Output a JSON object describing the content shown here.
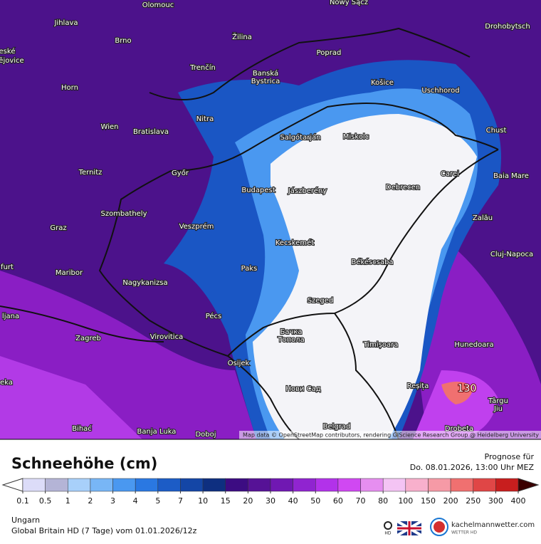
{
  "map": {
    "cities": [
      "Olomouc",
      "Nowy Sącz",
      "Jihlava",
      "Brno",
      "Žilina",
      "Poprad",
      "Drohobytsch",
      "eské",
      "ějovice",
      "Trenčín",
      "Banská",
      "Bystrica",
      "Košice",
      "Uschhorod",
      "Horn",
      "Nitra",
      "Wien",
      "Bratislava",
      "Salgótarján",
      "Miskolc",
      "Chust",
      "Ternitz",
      "Győr",
      "Carei",
      "Baia Mare",
      "Budapest",
      "Jászberény",
      "Debrecen",
      "Szombathely",
      "Veszprém",
      "Zalău",
      "Graz",
      "Kecskemét",
      "Cluj-Napoca",
      "furt",
      "Maribor",
      "Paks",
      "Békéscsaba",
      "Nagykanizsa",
      "ljana",
      "Szeged",
      "Pécs",
      "Zagreb",
      "Virovitica",
      "Бачка",
      "Топола",
      "Timișoara",
      "Hunedoara",
      "Osijek",
      "Нови Сад",
      "Reșița",
      "eka",
      "Târgu",
      "Jiu",
      "Bihać",
      "Banja Luka",
      "Doboj",
      "Belgrad",
      "Drobeta"
    ],
    "annotations": [
      "130"
    ],
    "attribution": "Map data © OpenStreetMap contributors, rendering GIScience Research Group @ Heidelberg University"
  },
  "legend": {
    "title": "Schneehöhe (cm)",
    "levels": [
      0.1,
      0.5,
      1,
      2,
      3,
      4,
      5,
      7,
      10,
      15,
      20,
      30,
      40,
      50,
      60,
      70,
      80,
      100,
      150,
      200,
      250,
      300,
      400
    ],
    "colors": [
      "#dcdcf8",
      "#b4b4d6",
      "#a8d0fa",
      "#78b6f6",
      "#4a98f0",
      "#2a78e2",
      "#1c5cc6",
      "#1446a6",
      "#0e2f80",
      "#3c0c82",
      "#561296",
      "#7018b2",
      "#9024d0",
      "#b232ea",
      "#d048f2",
      "#e68ef0",
      "#f4c4f4",
      "#f8b0cc",
      "#f69aa6",
      "#f07070",
      "#e04646",
      "#c81e1e",
      "#a00808",
      "#780000",
      "#560000",
      "#3a0000"
    ],
    "under_color": "#ffffff",
    "over_color": "#3a0000"
  },
  "header": {
    "forecast_label": "Prognose für",
    "forecast_time": "Do. 08.01.2026, 13:00 Uhr MEZ"
  },
  "footer": {
    "region": "Ungarn",
    "model": "Global Britain HD (7 Tage) vom 01.01.2026/12z",
    "hd": "HD",
    "brand": "kachelmannwetter.com",
    "brand_sub": "WETTER HD"
  }
}
